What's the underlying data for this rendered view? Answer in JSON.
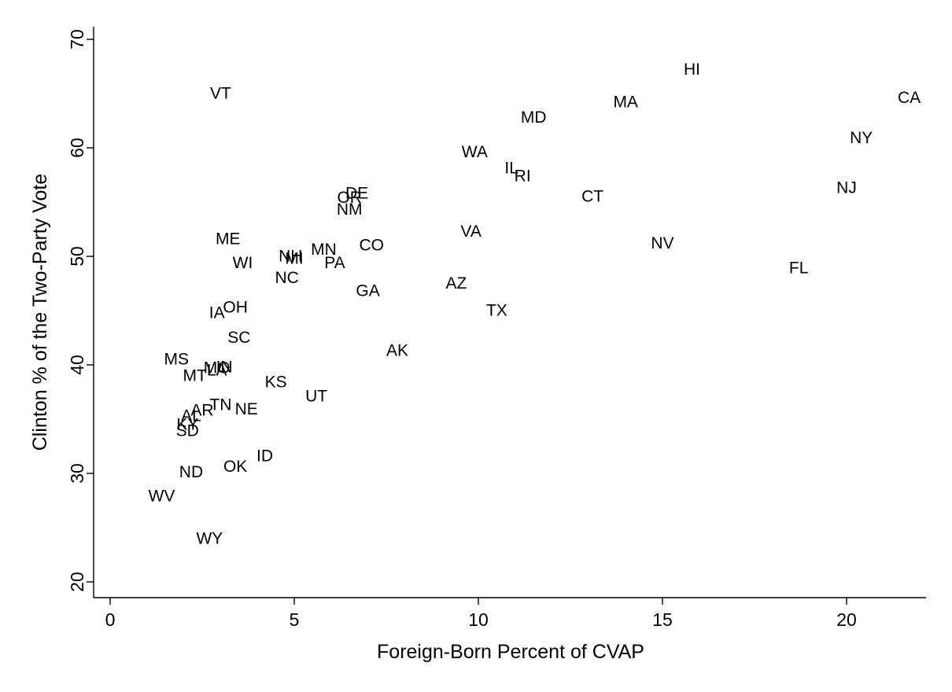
{
  "chart_data": {
    "type": "scatter",
    "title": "",
    "xlabel": "Foreign-Born Percent of CVAP",
    "ylabel": "Clinton % of the Two-Party Vote",
    "xlim": [
      -0.5,
      22.2
    ],
    "ylim": [
      19,
      72
    ],
    "xticks": [
      0,
      5,
      10,
      15,
      20
    ],
    "yticks": [
      20,
      30,
      40,
      50,
      60,
      70
    ],
    "grid": false,
    "legend": "none",
    "marker": "state abbreviation text only",
    "points": [
      {
        "label": "HI",
        "x": 15.8,
        "y": 67.2
      },
      {
        "label": "VT",
        "x": 3.0,
        "y": 65.0
      },
      {
        "label": "CA",
        "x": 21.7,
        "y": 64.6
      },
      {
        "label": "MA",
        "x": 14.0,
        "y": 64.2
      },
      {
        "label": "MD",
        "x": 11.5,
        "y": 62.8
      },
      {
        "label": "NY",
        "x": 20.4,
        "y": 60.9
      },
      {
        "label": "WA",
        "x": 9.9,
        "y": 59.6
      },
      {
        "label": "IL",
        "x": 10.9,
        "y": 58.1
      },
      {
        "label": "RI",
        "x": 11.2,
        "y": 57.4
      },
      {
        "label": "NJ",
        "x": 20.0,
        "y": 56.3
      },
      {
        "label": "CT",
        "x": 13.1,
        "y": 55.5
      },
      {
        "label": "DE",
        "x": 6.7,
        "y": 55.8
      },
      {
        "label": "OR",
        "x": 6.5,
        "y": 55.4
      },
      {
        "label": "NM",
        "x": 6.5,
        "y": 54.3
      },
      {
        "label": "VA",
        "x": 9.8,
        "y": 52.3
      },
      {
        "label": "ME",
        "x": 3.2,
        "y": 51.6
      },
      {
        "label": "NV",
        "x": 15.0,
        "y": 51.2
      },
      {
        "label": "CO",
        "x": 7.1,
        "y": 51.0
      },
      {
        "label": "MN",
        "x": 5.8,
        "y": 50.6
      },
      {
        "label": "NH",
        "x": 4.9,
        "y": 50.0
      },
      {
        "label": "MI",
        "x": 5.0,
        "y": 49.8
      },
      {
        "label": "WI",
        "x": 3.6,
        "y": 49.4
      },
      {
        "label": "PA",
        "x": 6.1,
        "y": 49.4
      },
      {
        "label": "FL",
        "x": 18.7,
        "y": 48.9
      },
      {
        "label": "NC",
        "x": 4.8,
        "y": 48.0
      },
      {
        "label": "AZ",
        "x": 9.4,
        "y": 47.5
      },
      {
        "label": "GA",
        "x": 7.0,
        "y": 46.8
      },
      {
        "label": "OH",
        "x": 3.4,
        "y": 45.3
      },
      {
        "label": "TX",
        "x": 10.5,
        "y": 45.0
      },
      {
        "label": "IA",
        "x": 2.9,
        "y": 44.8
      },
      {
        "label": "SC",
        "x": 3.5,
        "y": 42.5
      },
      {
        "label": "AK",
        "x": 7.8,
        "y": 41.3
      },
      {
        "label": "MS",
        "x": 1.8,
        "y": 40.5
      },
      {
        "label": "IN",
        "x": 3.1,
        "y": 39.8
      },
      {
        "label": "MO",
        "x": 2.9,
        "y": 39.7
      },
      {
        "label": "LA",
        "x": 2.9,
        "y": 39.5
      },
      {
        "label": "MT",
        "x": 2.3,
        "y": 39.0
      },
      {
        "label": "KS",
        "x": 4.5,
        "y": 38.4
      },
      {
        "label": "UT",
        "x": 5.6,
        "y": 37.1
      },
      {
        "label": "TN",
        "x": 3.0,
        "y": 36.3
      },
      {
        "label": "NE",
        "x": 3.7,
        "y": 35.9
      },
      {
        "label": "AR",
        "x": 2.5,
        "y": 35.8
      },
      {
        "label": "AL",
        "x": 2.2,
        "y": 35.3
      },
      {
        "label": "KY",
        "x": 2.1,
        "y": 34.5
      },
      {
        "label": "SD",
        "x": 2.1,
        "y": 33.9
      },
      {
        "label": "ID",
        "x": 4.2,
        "y": 31.6
      },
      {
        "label": "OK",
        "x": 3.4,
        "y": 30.6
      },
      {
        "label": "ND",
        "x": 2.2,
        "y": 30.1
      },
      {
        "label": "WV",
        "x": 1.4,
        "y": 27.9
      },
      {
        "label": "WY",
        "x": 2.7,
        "y": 24.0
      }
    ]
  }
}
